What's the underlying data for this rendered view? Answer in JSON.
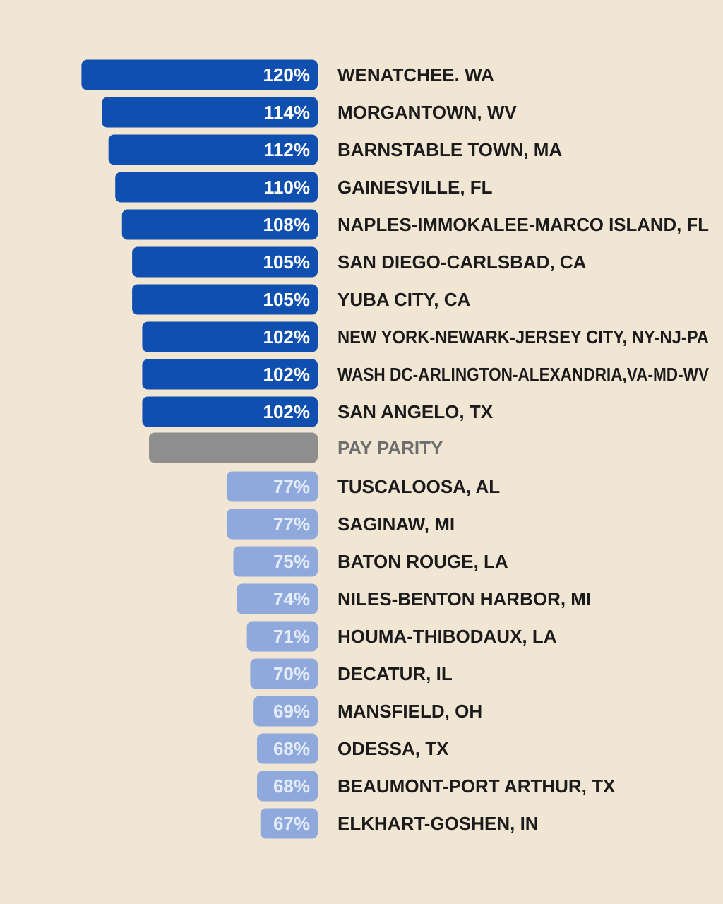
{
  "chart_data": {
    "type": "bar",
    "orientation": "horizontal",
    "categories": [
      "WENATCHEE. WA",
      "MORGANTOWN, WV",
      "BARNSTABLE TOWN, MA",
      "GAINESVILLE, FL",
      "NAPLES-IMMOKALEE-MARCO ISLAND, FL",
      "SAN DIEGO-CARLSBAD, CA",
      "YUBA CITY, CA",
      "NEW YORK-NEWARK-JERSEY CITY, NY-NJ-PA",
      "WASH DC-ARLINGTON-ALEXANDRIA,VA-MD-WV",
      "SAN ANGELO, TX",
      "PAY PARITY",
      "TUSCALOOSA, AL",
      "SAGINAW, MI",
      "BATON ROUGE, LA",
      "NILES-BENTON HARBOR, MI",
      "HOUMA-THIBODAUX, LA",
      "DECATUR, IL",
      "MANSFIELD, OH",
      "ODESSA, TX",
      "BEAUMONT-PORT ARTHUR, TX",
      "ELKHART-GOSHEN, IN"
    ],
    "values": [
      120,
      114,
      112,
      110,
      108,
      105,
      105,
      102,
      102,
      102,
      100,
      77,
      77,
      75,
      74,
      71,
      70,
      69,
      68,
      68,
      67
    ],
    "value_labels": [
      "120%",
      "114%",
      "112%",
      "110%",
      "108%",
      "105%",
      "105%",
      "102%",
      "102%",
      "102%",
      "",
      "77%",
      "77%",
      "75%",
      "74%",
      "71%",
      "70%",
      "69%",
      "68%",
      "68%",
      "67%"
    ],
    "groups": [
      "above",
      "above",
      "above",
      "above",
      "above",
      "above",
      "above",
      "above",
      "above",
      "above",
      "parity",
      "below",
      "below",
      "below",
      "below",
      "below",
      "below",
      "below",
      "below",
      "below",
      "below"
    ],
    "colors": {
      "above": "#0f4fb0",
      "above_text": "#ffffff",
      "parity": "#8e8e8e",
      "below": "#8fa9dc",
      "below_text": "#e5ecf9",
      "label": "#1b1b1b",
      "parity_label": "#6e6e6e",
      "background": "#f1e6d4"
    }
  }
}
